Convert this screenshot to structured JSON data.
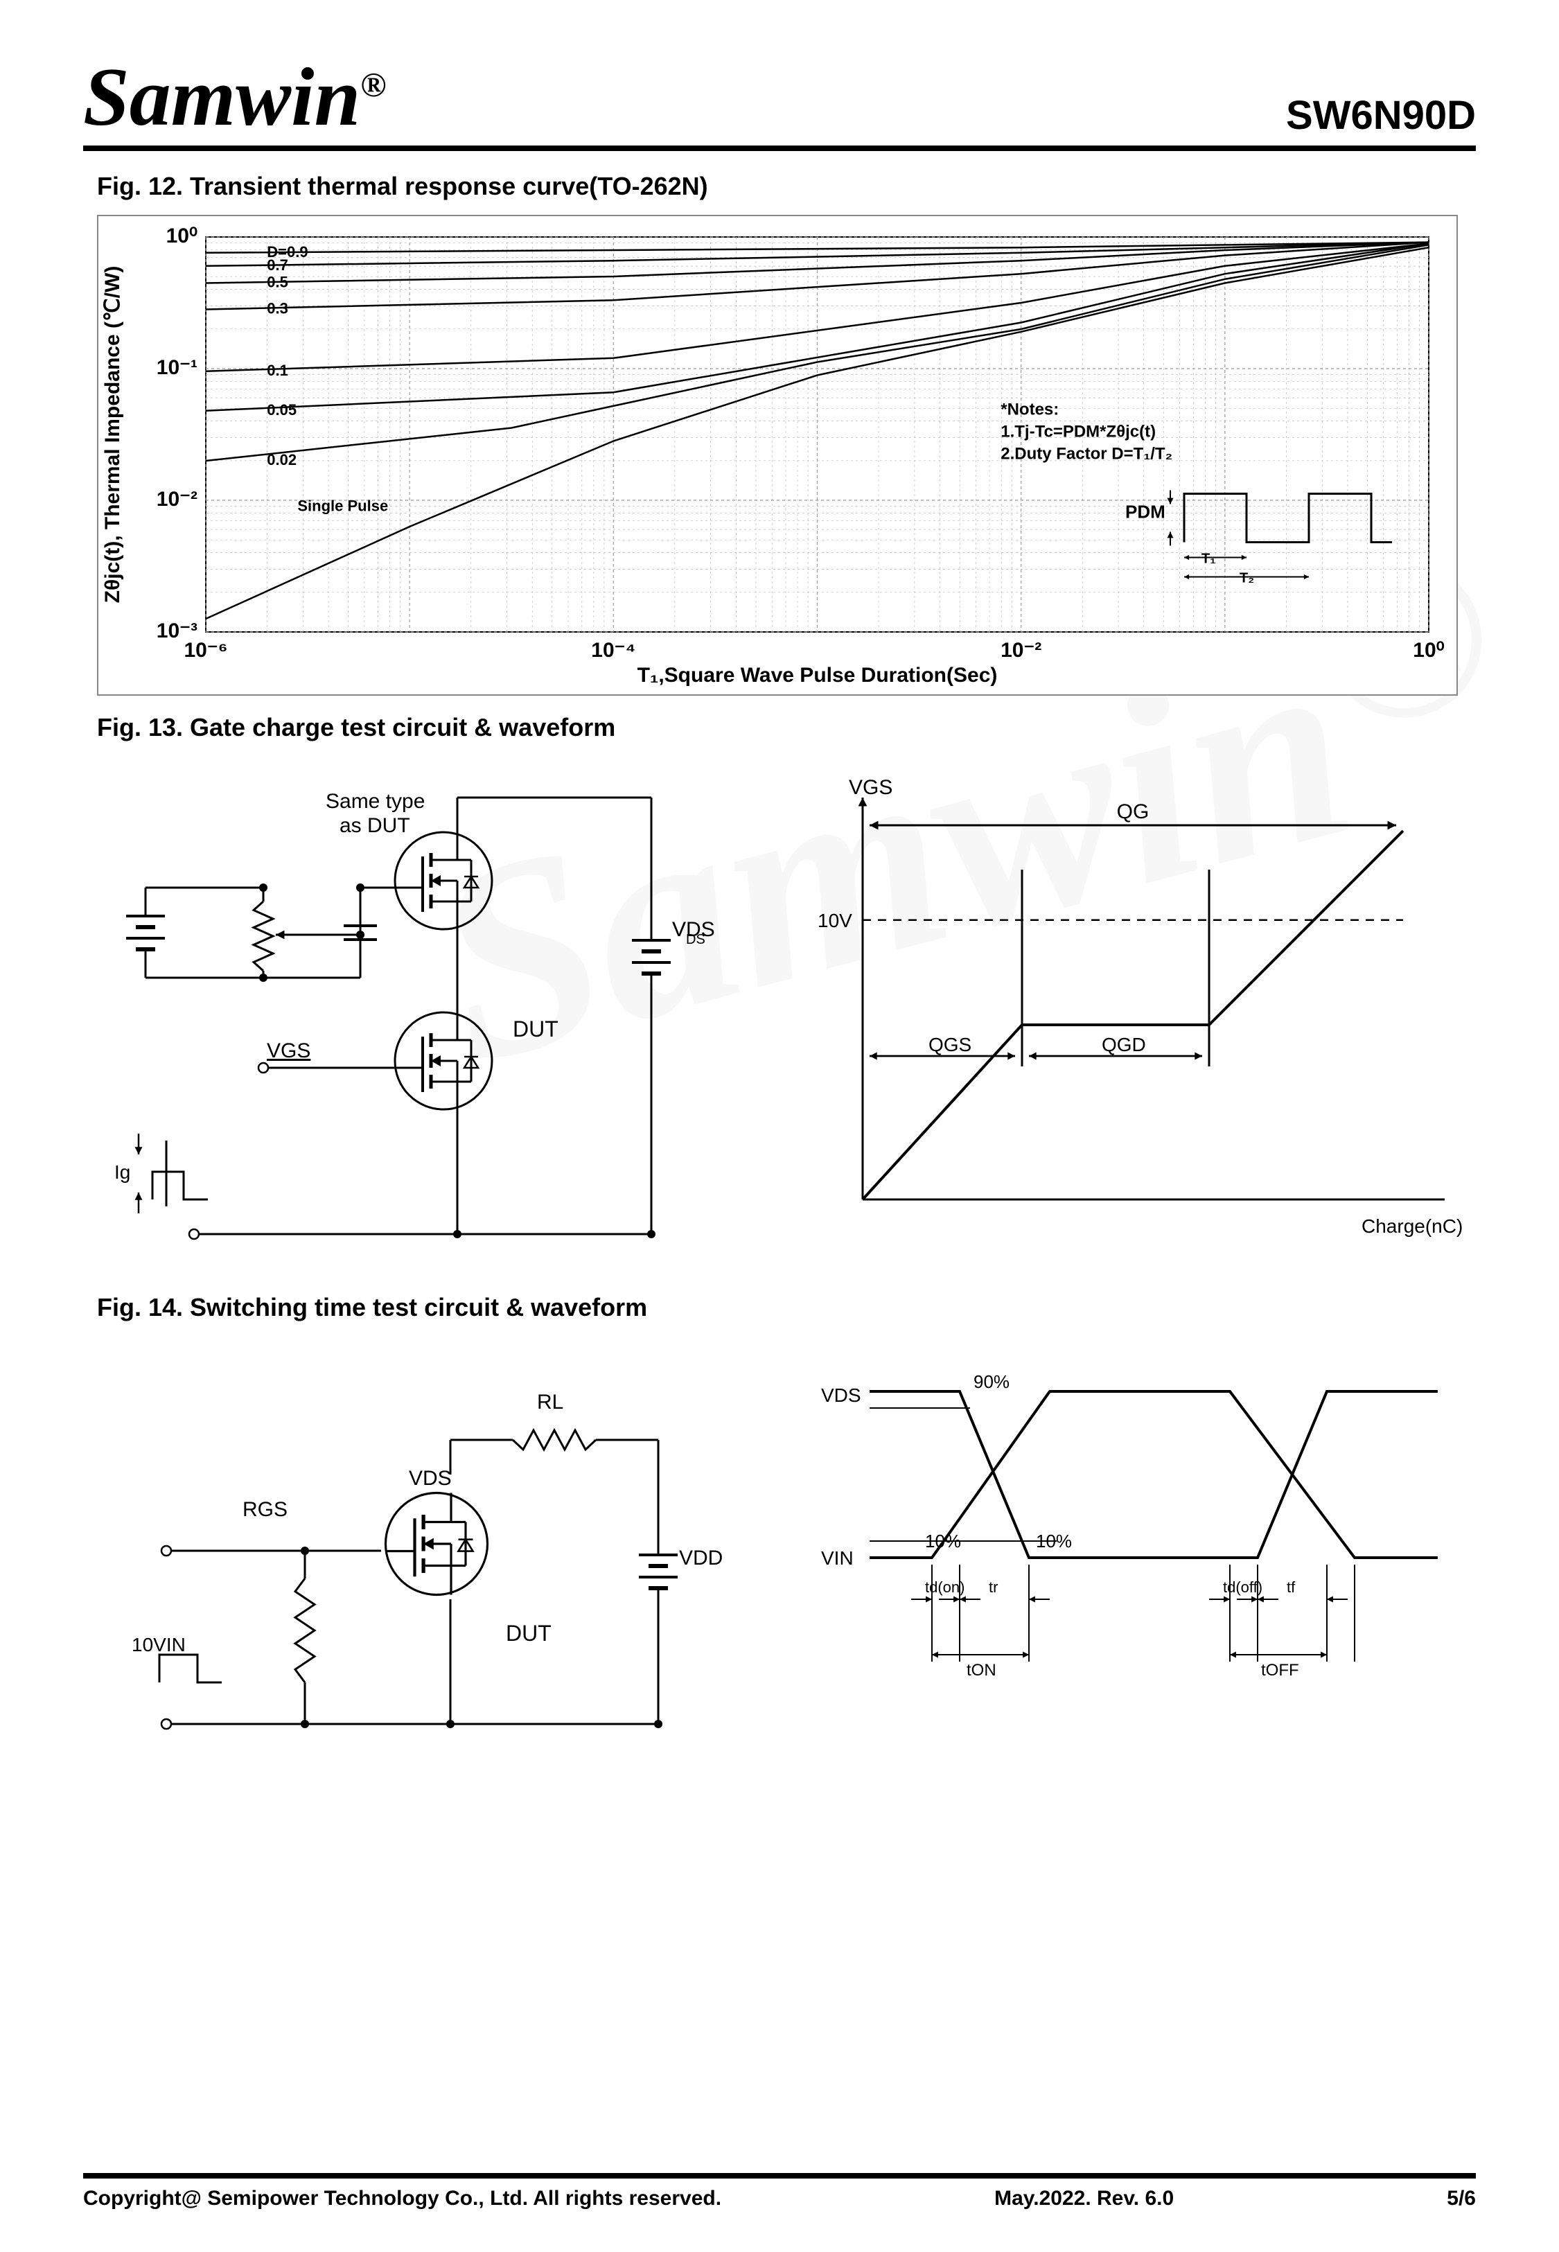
{
  "header": {
    "brand": "Samwin",
    "reg": "®",
    "part_number": "SW6N90D"
  },
  "fig12": {
    "title": "Fig. 12. Transient thermal response curve(TO-262N)",
    "y_label": "Zθjc(t), Thermal Impedance (℃/W)",
    "x_label": "T₁,Square Wave Pulse Duration(Sec)",
    "x_ticks": [
      "10⁻⁶",
      "10⁻⁴",
      "10⁻²",
      "10⁰"
    ],
    "y_ticks": [
      "10⁻³",
      "10⁻²",
      "10⁻¹",
      "10⁰"
    ],
    "x_min": -6,
    "x_max": 0,
    "y_min": -3,
    "y_max": 0,
    "notes": [
      "*Notes:",
      "1.Tj-Tc=PDM*Zθjc(t)",
      "2.Duty Factor D=T₁/T₂"
    ],
    "pdm_label": "PDM",
    "t1_label": "T₁",
    "t2_label": "T₂",
    "curves": [
      {
        "label": "D=0.9",
        "label_x": -5.7,
        "label_y": -0.12,
        "pts": [
          [
            -6,
            -0.12
          ],
          [
            -4,
            -0.1
          ],
          [
            -2,
            -0.08
          ],
          [
            -1,
            -0.06
          ],
          [
            0,
            -0.04
          ]
        ]
      },
      {
        "label": "0.7",
        "label_x": -5.7,
        "label_y": -0.22,
        "pts": [
          [
            -6,
            -0.22
          ],
          [
            -4,
            -0.18
          ],
          [
            -2,
            -0.12
          ],
          [
            -1,
            -0.08
          ],
          [
            0,
            -0.04
          ]
        ]
      },
      {
        "label": "0.5",
        "label_x": -5.7,
        "label_y": -0.35,
        "pts": [
          [
            -6,
            -0.35
          ],
          [
            -4,
            -0.3
          ],
          [
            -2,
            -0.18
          ],
          [
            -1,
            -0.1
          ],
          [
            0,
            -0.04
          ]
        ]
      },
      {
        "label": "0.3",
        "label_x": -5.7,
        "label_y": -0.55,
        "pts": [
          [
            -6,
            -0.55
          ],
          [
            -4,
            -0.48
          ],
          [
            -2,
            -0.28
          ],
          [
            -1,
            -0.14
          ],
          [
            0,
            -0.04
          ]
        ]
      },
      {
        "label": "0.1",
        "label_x": -5.7,
        "label_y": -1.02,
        "pts": [
          [
            -6,
            -1.02
          ],
          [
            -4,
            -0.92
          ],
          [
            -2,
            -0.5
          ],
          [
            -1,
            -0.22
          ],
          [
            0,
            -0.05
          ]
        ]
      },
      {
        "label": "0.05",
        "label_x": -5.7,
        "label_y": -1.32,
        "pts": [
          [
            -6,
            -1.32
          ],
          [
            -4,
            -1.18
          ],
          [
            -2,
            -0.65
          ],
          [
            -1,
            -0.28
          ],
          [
            0,
            -0.05
          ]
        ]
      },
      {
        "label": "0.02",
        "label_x": -5.7,
        "label_y": -1.7,
        "pts": [
          [
            -6,
            -1.7
          ],
          [
            -4.5,
            -1.45
          ],
          [
            -3,
            -0.95
          ],
          [
            -2,
            -0.7
          ],
          [
            -1,
            -0.32
          ],
          [
            0,
            -0.06
          ]
        ]
      },
      {
        "label": "Single Pulse",
        "label_x": -5.55,
        "label_y": -2.05,
        "pts": [
          [
            -6,
            -2.9
          ],
          [
            -5,
            -2.2
          ],
          [
            -4,
            -1.55
          ],
          [
            -3,
            -1.05
          ],
          [
            -2,
            -0.72
          ],
          [
            -1,
            -0.35
          ],
          [
            0,
            -0.08
          ]
        ]
      }
    ],
    "grid_color": "#999",
    "grid_minor_color": "#bbb",
    "curve_color": "#000",
    "curve_width": 2.5,
    "font_size_ticks": 26,
    "font_size_label": 30,
    "font_size_curve_label": 22
  },
  "fig13": {
    "title": "Fig. 13. Gate charge test circuit & waveform",
    "circuit": {
      "same_type": "Same type",
      "as_dut": "as DUT",
      "vds": "VDS",
      "dut": "DUT",
      "vgs": "VGS",
      "ig": "Ig"
    },
    "waveform": {
      "vgs": "VGS",
      "ten_v": "10V",
      "qg": "QG",
      "qgs": "QGS",
      "qgd": "QGD",
      "xlabel": "Charge(nC)"
    }
  },
  "fig14": {
    "title": "Fig. 14. Switching time test circuit & waveform",
    "circuit": {
      "rl": "RL",
      "rgs": "RGS",
      "vds": "VDS",
      "vdd": "VDD",
      "dut": "DUT",
      "ten_vin": "10VIN"
    },
    "waveform": {
      "vds": "VDS",
      "vin": "VIN",
      "p90": "90%",
      "p10a": "10%",
      "p10b": "10%",
      "tdon": "td(on)",
      "tr": "tr",
      "tdoff": "td(off)",
      "tf": "tf",
      "ton": "tON",
      "toff": "tOFF"
    }
  },
  "footer": {
    "copyright": "Copyright@ Semipower Technology Co., Ltd. All rights reserved.",
    "rev": "May.2022. Rev. 6.0",
    "page": "5/6"
  },
  "colors": {
    "stroke": "#000000",
    "grid": "#999999"
  }
}
